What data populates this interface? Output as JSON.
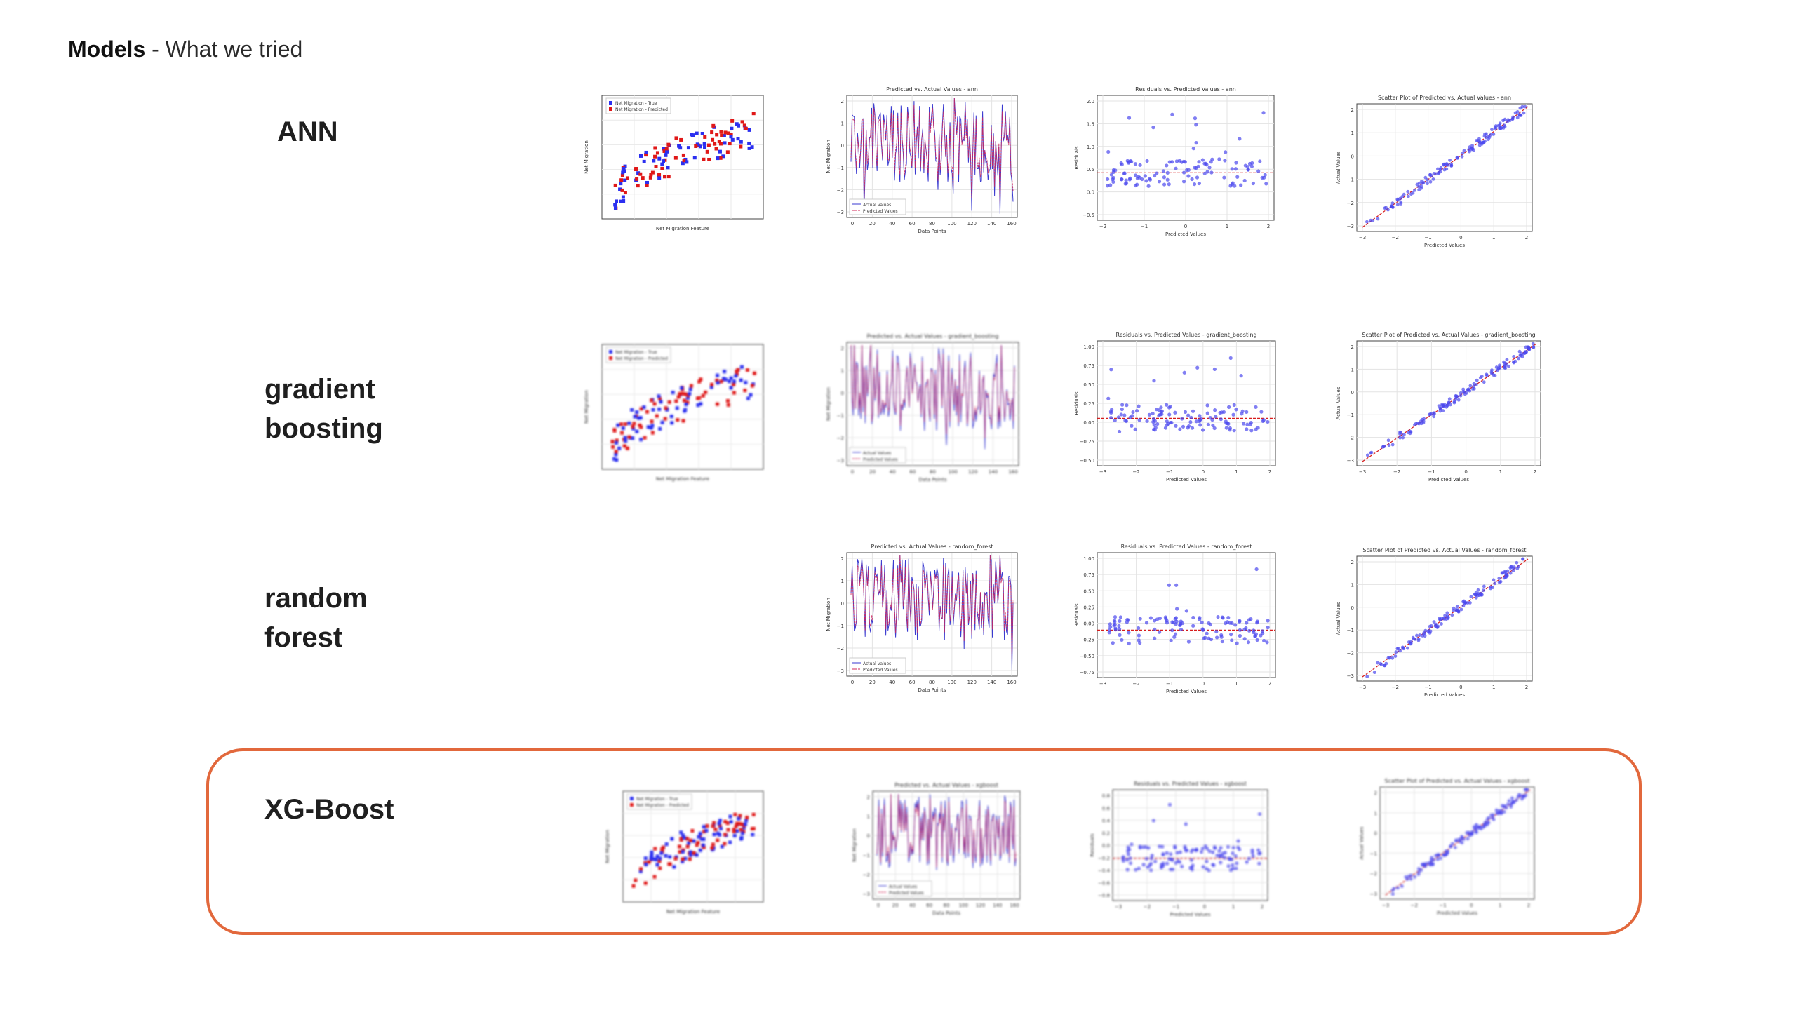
{
  "slide": {
    "title_strong": "Models",
    "title_rest": " - What we tried"
  },
  "colors": {
    "true_points": "#2b2ff0",
    "pred_points": "#e01818",
    "actual_line": "#3a3ad0",
    "pred_line": "#d0285a",
    "resid_points": "#4b49ee",
    "ref_line": "#d81c1c",
    "highlight": "#e2683c"
  },
  "models": [
    {
      "label_lines": [
        "ANN"
      ],
      "highlighted": false,
      "charts": {
        "feature": {
          "legend": [
            "Net Migration - True",
            "Net Migration - Predicted"
          ],
          "xlabel": "Net Migration Feature",
          "ylabel": "Net Migration"
        },
        "series": {
          "title": "Predicted vs. Actual Values - ann",
          "xlabel": "Data Points",
          "ylabel": "Net Migration",
          "legend": [
            "Actual Values",
            "Predicted Values"
          ],
          "xticks": [
            "0",
            "20",
            "40",
            "60",
            "80",
            "100",
            "120",
            "140",
            "160"
          ],
          "yticks": [
            "2",
            "1",
            "0",
            "−1",
            "−2",
            "−3"
          ]
        },
        "residuals": {
          "title": "Residuals vs. Predicted Values - ann",
          "xlabel": "Predicted Values",
          "ylabel": "Residuals",
          "xticks": [
            "−2",
            "−1",
            "0",
            "1",
            "2"
          ],
          "yticks": [
            "2.0",
            "1.5",
            "1.0",
            "0.5",
            "0.0",
            "−0.5"
          ]
        },
        "scatter": {
          "title": "Scatter Plot of Predicted vs. Actual Values - ann",
          "xlabel": "Predicted Values",
          "ylabel": "Actual Values",
          "xticks": [
            "−3",
            "−2",
            "−1",
            "0",
            "1",
            "2"
          ],
          "yticks": [
            "2",
            "1",
            "0",
            "−1",
            "−2",
            "−3"
          ]
        }
      }
    },
    {
      "label_lines": [
        "gradient",
        "boosting"
      ],
      "highlighted": false,
      "charts": {
        "feature": {
          "legend": [
            "Net Migration - True",
            "Net Migration - Predicted"
          ],
          "xlabel": "Net Migration Feature",
          "ylabel": "Net Migration"
        },
        "series": {
          "title": "Predicted vs. Actual Values - gradient_boosting",
          "xlabel": "Data Points",
          "ylabel": "Net Migration",
          "legend": [
            "Actual Values",
            "Predicted Values"
          ],
          "xticks": [
            "0",
            "20",
            "40",
            "60",
            "80",
            "100",
            "120",
            "140",
            "160"
          ],
          "yticks": [
            "2",
            "1",
            "0",
            "−1",
            "−2",
            "−3"
          ]
        },
        "residuals": {
          "title": "Residuals vs. Predicted Values - gradient_boosting",
          "xlabel": "Predicted Values",
          "ylabel": "Residuals",
          "xticks": [
            "−3",
            "−2",
            "−1",
            "0",
            "1",
            "2"
          ],
          "yticks": [
            "1.00",
            "0.75",
            "0.50",
            "0.25",
            "0.00",
            "−0.25",
            "−0.50"
          ]
        },
        "scatter": {
          "title": "Scatter Plot of Predicted vs. Actual Values - gradient_boosting",
          "xlabel": "Predicted Values",
          "ylabel": "Actual Values",
          "xticks": [
            "−3",
            "−2",
            "−1",
            "0",
            "1",
            "2"
          ],
          "yticks": [
            "2",
            "1",
            "0",
            "−1",
            "−2",
            "−3"
          ]
        }
      }
    },
    {
      "label_lines": [
        "random",
        "forest"
      ],
      "highlighted": false,
      "charts": {
        "series": {
          "title": "Predicted vs. Actual Values - random_forest",
          "xlabel": "Data Points",
          "ylabel": "Net Migration",
          "legend": [
            "Actual Values",
            "Predicted Values"
          ],
          "xticks": [
            "0",
            "20",
            "40",
            "60",
            "80",
            "100",
            "120",
            "140",
            "160"
          ],
          "yticks": [
            "2",
            "1",
            "0",
            "−1",
            "−2",
            "−3"
          ]
        },
        "residuals": {
          "title": "Residuals vs. Predicted Values - random_forest",
          "xlabel": "Predicted Values",
          "ylabel": "Residuals",
          "xticks": [
            "−3",
            "−2",
            "−1",
            "0",
            "1",
            "2"
          ],
          "yticks": [
            "1.00",
            "0.75",
            "0.50",
            "0.25",
            "0.00",
            "−0.25",
            "−0.50",
            "−0.75"
          ]
        },
        "scatter": {
          "title": "Scatter Plot of Predicted vs. Actual Values - random_forest",
          "xlabel": "Predicted Values",
          "ylabel": "Actual Values",
          "xticks": [
            "−3",
            "−2",
            "−1",
            "0",
            "1",
            "2"
          ],
          "yticks": [
            "2",
            "1",
            "0",
            "−1",
            "−2",
            "−3"
          ]
        }
      }
    },
    {
      "label_lines": [
        "XG-Boost"
      ],
      "highlighted": true,
      "charts": {
        "feature": {
          "legend": [
            "Net Migration - True",
            "Net Migration - Predicted"
          ],
          "xlabel": "Net Migration Feature",
          "ylabel": "Net Migration"
        },
        "series": {
          "title": "Predicted vs. Actual Values - xgboost",
          "xlabel": "Data Points",
          "ylabel": "Net Migration",
          "legend": [
            "Actual Values",
            "Predicted Values"
          ],
          "xticks": [
            "0",
            "20",
            "40",
            "60",
            "80",
            "100",
            "120",
            "140",
            "160"
          ],
          "yticks": [
            "2",
            "1",
            "0",
            "−1",
            "−2",
            "−3"
          ]
        },
        "residuals": {
          "title": "Residuals vs. Predicted Values - xgboost",
          "xlabel": "Predicted Values",
          "ylabel": "Residuals",
          "xticks": [
            "−3",
            "−2",
            "−1",
            "0",
            "1",
            "2"
          ],
          "yticks": [
            "0.8",
            "0.6",
            "0.4",
            "0.2",
            "0.0",
            "−0.2",
            "−0.4",
            "−0.6",
            "−0.8"
          ]
        },
        "scatter": {
          "title": "Scatter Plot of Predicted vs. Actual Values - xgboost",
          "xlabel": "Predicted Values",
          "ylabel": "Actual Values",
          "xticks": [
            "−3",
            "−2",
            "−1",
            "0",
            "1",
            "2"
          ],
          "yticks": [
            "2",
            "1",
            "0",
            "−1",
            "−2",
            "−3"
          ]
        }
      }
    }
  ]
}
